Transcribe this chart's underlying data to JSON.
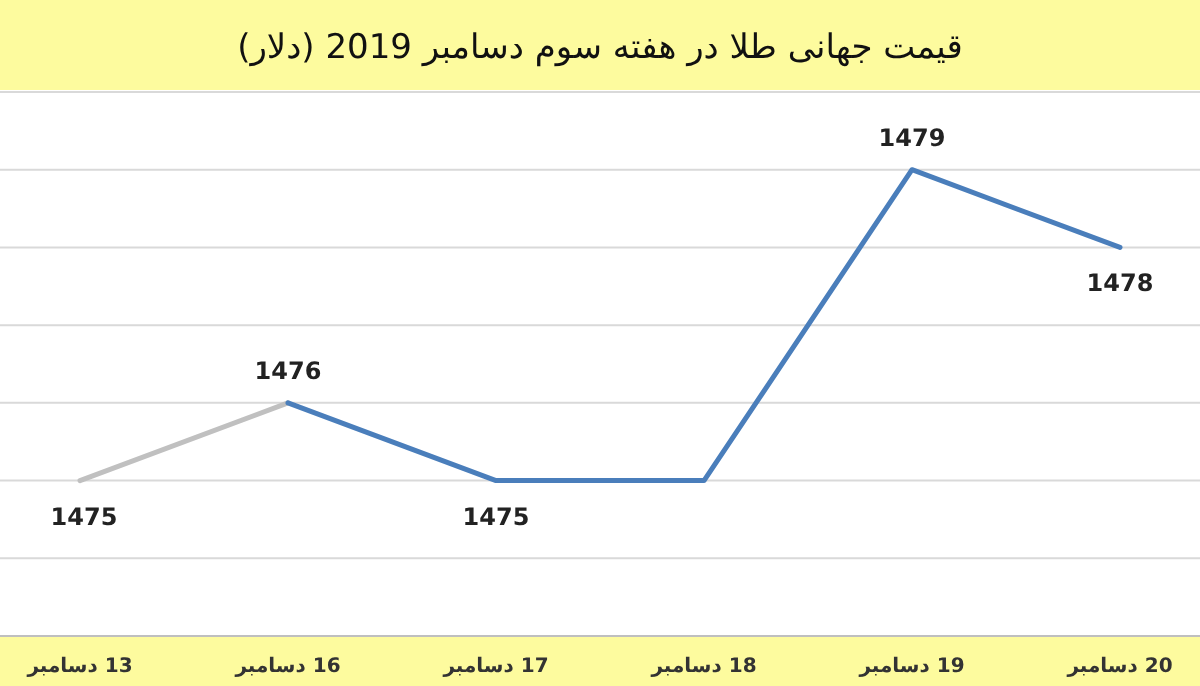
{
  "chart_data": {
    "type": "line",
    "title": "قیمت جهانی طلا در هفته سوم دسامبر 2019 (دلار)",
    "categories": [
      "13 دسامبر",
      "16 دسامبر",
      "17 دسامبر",
      "18 دسامبر",
      "19 دسامبر",
      "20 دسامبر"
    ],
    "series": [
      {
        "color": "#c0c0c0",
        "values": [
          1475,
          1476,
          null,
          null,
          null,
          null
        ],
        "value_labels": [
          "1475",
          "1476",
          null,
          null,
          null,
          null
        ]
      },
      {
        "color": "#4a7ebb",
        "values": [
          null,
          1476,
          1475,
          1475,
          1479,
          1478
        ],
        "value_labels": [
          null,
          null,
          "1475",
          null,
          "1479",
          "1478"
        ]
      }
    ],
    "ylim": [
      1473,
      1480
    ],
    "yticks": [
      {
        "value": 1474,
        "label": null
      },
      {
        "value": 1475,
        "label": null
      },
      {
        "value": 1476,
        "label": null
      },
      {
        "value": 1477,
        "label": null
      },
      {
        "value": 1478,
        "label": null
      },
      {
        "value": 1479,
        "label": null
      },
      {
        "value": 1480,
        "label": null
      }
    ],
    "grid": "y",
    "marker": "none",
    "line_style": "solid"
  }
}
